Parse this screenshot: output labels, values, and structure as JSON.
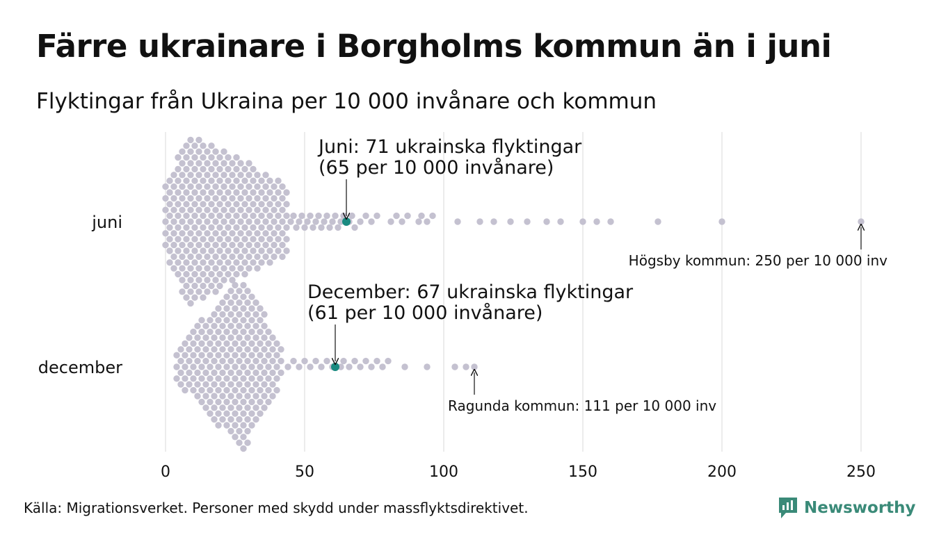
{
  "title": "Färre ukrainare i Borgholms kommun än i juni",
  "subtitle": "Flyktingar från Ukraina per 10 000 invånare och kommun",
  "source": "Källa: Migrationsverket. Personer med skydd under massflyktsdirektivet.",
  "logo": {
    "name": "Newsworthy",
    "icon": "newsworthy-logo-icon"
  },
  "colors": {
    "dot": "#c4c1d0",
    "highlight": "#1a8a80",
    "grid": "#d9d9d9",
    "text": "#111111",
    "brand": "#3a8a78"
  },
  "chart_data": {
    "type": "scatter",
    "subtype": "beeswarm",
    "xlim": [
      0,
      250
    ],
    "x_ticks": [
      0,
      50,
      100,
      150,
      200,
      250
    ],
    "x_tick_labels": [
      "0",
      "50",
      "100",
      "150",
      "200",
      "250"
    ],
    "grid": true,
    "series": [
      {
        "name": "juni",
        "sparse_points": [
          45,
          46,
          47,
          48,
          49,
          50,
          51,
          52,
          53,
          54,
          55,
          56,
          57,
          58,
          59,
          60,
          61,
          62,
          63,
          64,
          66,
          67,
          68,
          70,
          72,
          74,
          76,
          81,
          83,
          85,
          87,
          91,
          92,
          94,
          96,
          105,
          113,
          118,
          124,
          130,
          137,
          142,
          150,
          155,
          160,
          177,
          200,
          250
        ],
        "density": {
          "start": 0,
          "end": 44,
          "peak": 8,
          "peak_count": 15,
          "tail_count": 6,
          "step": 1.5
        },
        "highlight": {
          "label": "Juni: 71 ukrainska flyktingar",
          "label_line2": "(65 per 10 000 invånare)",
          "value": 65
        },
        "outlier": {
          "label": "Högsby kommun: 250 per 10 000 inv",
          "value": 250
        }
      },
      {
        "name": "december",
        "sparse_points": [
          44,
          46,
          48,
          50,
          52,
          54,
          56,
          58,
          60,
          63,
          64,
          66,
          68,
          70,
          72,
          74,
          76,
          78,
          80,
          86,
          94,
          104,
          108,
          111
        ],
        "density": {
          "start": 4,
          "end": 42,
          "peak": 28,
          "peak_count": 15,
          "tail_count": 3,
          "step": 1.5
        },
        "highlight": {
          "label": "December: 67 ukrainska flyktingar",
          "label_line2": "(61 per 10 000 invånare)",
          "value": 61
        },
        "outlier": {
          "label": "Ragunda kommun: 111 per 10 000 inv",
          "value": 111
        }
      }
    ]
  }
}
